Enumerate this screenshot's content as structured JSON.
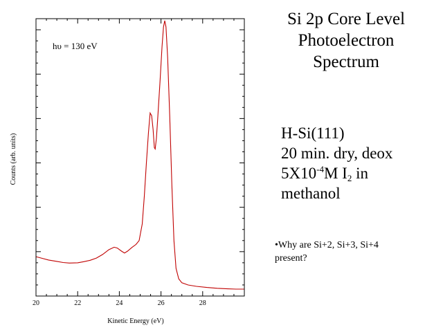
{
  "slide": {
    "title_lines": [
      "Si 2p Core Level",
      "Photoelectron",
      "Spectrum"
    ],
    "sample": {
      "line1": "H-Si(111)",
      "line2": "20 min. dry, deox",
      "line3_pre": "5X10",
      "line3_sup": "-4",
      "line3_mid": "M I",
      "line3_sub": "2",
      "line3_post": " in",
      "line4": "methanol"
    },
    "note": "•Why are Si+2, Si+3, Si+4 present?"
  },
  "chart_data": {
    "type": "line",
    "xlabel": "Kinetic Energy (eV)",
    "ylabel": "Counts (arb. units)",
    "annotation": "hυ = 130 eV",
    "xlim": [
      20,
      30
    ],
    "ylim": [
      0,
      100
    ],
    "x_ticks": [
      20,
      22,
      24,
      26,
      28
    ],
    "y_labels_shown": false,
    "grid": false,
    "series": [
      {
        "color": "#c00000",
        "points": [
          [
            20.0,
            14.2
          ],
          [
            20.3,
            13.6
          ],
          [
            20.6,
            13.0
          ],
          [
            21.0,
            12.5
          ],
          [
            21.3,
            12.1
          ],
          [
            21.6,
            11.9
          ],
          [
            22.0,
            12.0
          ],
          [
            22.3,
            12.4
          ],
          [
            22.6,
            12.9
          ],
          [
            22.9,
            13.7
          ],
          [
            23.2,
            15.0
          ],
          [
            23.5,
            16.7
          ],
          [
            23.75,
            17.6
          ],
          [
            23.9,
            17.3
          ],
          [
            24.1,
            16.2
          ],
          [
            24.25,
            15.5
          ],
          [
            24.4,
            16.2
          ],
          [
            24.6,
            17.5
          ],
          [
            24.8,
            18.6
          ],
          [
            24.95,
            20.0
          ],
          [
            25.1,
            26.0
          ],
          [
            25.2,
            36.0
          ],
          [
            25.3,
            48.0
          ],
          [
            25.4,
            59.0
          ],
          [
            25.48,
            66.0
          ],
          [
            25.55,
            65.0
          ],
          [
            25.62,
            60.0
          ],
          [
            25.68,
            53.5
          ],
          [
            25.72,
            53.0
          ],
          [
            25.78,
            57.0
          ],
          [
            25.85,
            65.0
          ],
          [
            25.95,
            77.0
          ],
          [
            26.05,
            90.0
          ],
          [
            26.12,
            97.0
          ],
          [
            26.18,
            99.3
          ],
          [
            26.24,
            97.0
          ],
          [
            26.32,
            86.0
          ],
          [
            26.42,
            65.0
          ],
          [
            26.52,
            40.0
          ],
          [
            26.62,
            20.0
          ],
          [
            26.72,
            10.0
          ],
          [
            26.85,
            6.2
          ],
          [
            27.0,
            4.8
          ],
          [
            27.3,
            4.0
          ],
          [
            27.7,
            3.5
          ],
          [
            28.2,
            3.1
          ],
          [
            28.7,
            2.8
          ],
          [
            29.2,
            2.6
          ],
          [
            29.6,
            2.5
          ],
          [
            30.0,
            2.5
          ]
        ]
      }
    ]
  }
}
